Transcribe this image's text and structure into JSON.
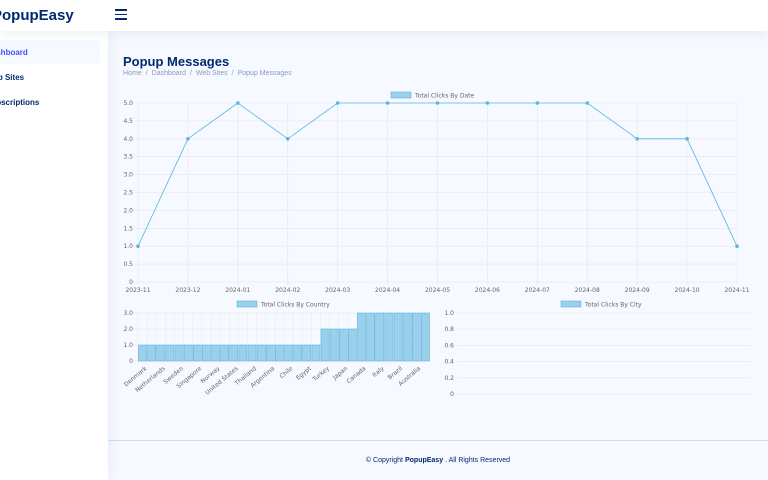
{
  "header": {
    "logo_text": "PopupEasy"
  },
  "sidebar": {
    "items": [
      {
        "label": "Dashboard",
        "active": true
      },
      {
        "label": "Web Sites",
        "active": false
      },
      {
        "label": "Subscriptions",
        "active": false
      }
    ]
  },
  "page": {
    "title": "Popup Messages",
    "breadcrumb": [
      "Home",
      "Dashboard",
      "Web Sites",
      "Popup Messages"
    ]
  },
  "colors": {
    "series_fill": "#9ad0ec",
    "series_stroke": "#5bb5e0",
    "grid": "#e6e6e6"
  },
  "chart_data": [
    {
      "type": "line",
      "title": "Total Clicks By Date",
      "categories": [
        "2023-11",
        "2023-12",
        "2024-01",
        "2024-02",
        "2024-03",
        "2024-04",
        "2024-05",
        "2024-06",
        "2024-07",
        "2024-08",
        "2024-09",
        "2024-10",
        "2024-11"
      ],
      "values": [
        1,
        4,
        5,
        4,
        5,
        5,
        5,
        5,
        5,
        5,
        4,
        4,
        1
      ],
      "yticks": [
        "0",
        "0.5",
        "1.0",
        "1.5",
        "2.0",
        "2.5",
        "3.0",
        "3.5",
        "4.0",
        "4.5",
        "5.0"
      ],
      "ylim": [
        0,
        5
      ],
      "legend": "top-center",
      "grid": true
    },
    {
      "type": "bar",
      "title": "Total Clicks By Country",
      "categories": [
        "Denmark",
        "",
        "Netherlands",
        "",
        "Sweden",
        "",
        "Singapore",
        "",
        "Norway",
        "",
        "United States",
        "",
        "Thailand",
        "",
        "Argentina",
        "",
        "Chile",
        "",
        "Egypt",
        "",
        "Turkey",
        "",
        "Japan",
        "",
        "Canada",
        "",
        "Italy",
        "",
        "Brazil",
        "",
        "Australia",
        ""
      ],
      "values": [
        1,
        1,
        1,
        1,
        1,
        1,
        1,
        1,
        1,
        1,
        1,
        1,
        1,
        1,
        1,
        1,
        1,
        1,
        1,
        1,
        2,
        2,
        2,
        2,
        3,
        3,
        3,
        3,
        3,
        3,
        3,
        3
      ],
      "yticks": [
        "0",
        "1.0",
        "2.0",
        "3.0"
      ],
      "ylim": [
        0,
        3
      ],
      "legend": "top-center",
      "grid": true
    },
    {
      "type": "bar",
      "title": "Total Clicks By City",
      "categories": [],
      "values": [],
      "yticks": [
        "0",
        "0.2",
        "0.4",
        "0.6",
        "0.8",
        "1.0"
      ],
      "ylim": [
        0,
        1
      ],
      "legend": "top-center",
      "grid": true
    }
  ],
  "footer": {
    "prefix": "© Copyright",
    "brand": "PopupEasy",
    "suffix": ". All Rights Reserved"
  }
}
